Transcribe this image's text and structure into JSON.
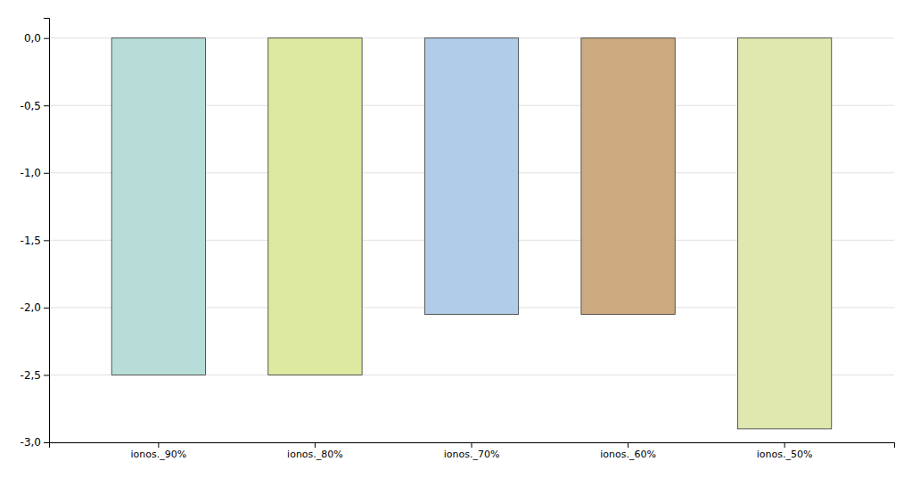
{
  "chart_data": {
    "type": "bar",
    "categories": [
      "ionos._90%",
      "ionos._80%",
      "ionos._70%",
      "ionos._60%",
      "ionos._50%"
    ],
    "values": [
      -2.5,
      -2.5,
      -2.05,
      -2.05,
      -2.9
    ],
    "colors": [
      "#b8ddd8",
      "#dde8a0",
      "#b0cce8",
      "#ccaa80",
      "#e0e8b0"
    ],
    "ylim": [
      -3.0,
      0.15
    ],
    "yticks": [
      {
        "value": 0.0,
        "label": "0,0"
      },
      {
        "value": -0.5,
        "label": "-0,5"
      },
      {
        "value": -1.0,
        "label": "-1,0"
      },
      {
        "value": -1.5,
        "label": "-1,5"
      },
      {
        "value": -2.0,
        "label": "-2,0"
      },
      {
        "value": -2.5,
        "label": "-2,5"
      },
      {
        "value": -3.0,
        "label": "-3,0"
      }
    ],
    "grid": true
  }
}
